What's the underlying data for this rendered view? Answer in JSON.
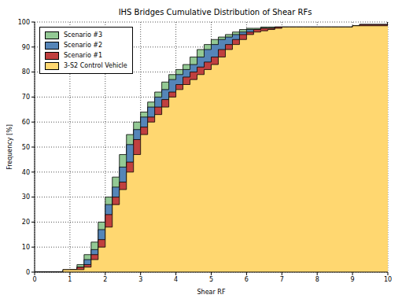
{
  "chart_data": {
    "type": "area",
    "title": "IHS Bridges Cumulative Distribution of Shear RFs",
    "x_label": "Shear RF",
    "y_label": "Frequency [%]",
    "x": [
      0,
      0.2,
      0.4,
      0.6,
      0.8,
      1,
      1.2,
      1.4,
      1.6,
      1.8,
      2,
      2.2,
      2.4,
      2.6,
      2.8,
      3,
      3.2,
      3.4,
      3.6,
      3.8,
      4,
      4.2,
      4.4,
      4.6,
      4.8,
      5,
      5.2,
      5.4,
      5.6,
      5.8,
      6,
      6.2,
      6.4,
      6.6,
      6.8,
      7,
      7.2,
      7.4,
      7.6,
      7.8,
      8,
      8.2,
      8.4,
      8.6,
      8.8,
      9,
      9.2,
      9.4,
      9.6,
      9.8,
      10
    ],
    "series": [
      {
        "name": "Scenario #3",
        "color": "#93c994",
        "values": [
          0,
          0,
          0,
          0,
          0,
          1,
          3,
          7,
          12,
          20,
          30,
          38,
          47,
          55,
          60,
          64,
          68,
          72,
          76,
          79,
          81,
          83,
          86,
          89,
          91,
          93,
          94,
          95,
          96,
          97,
          97.5,
          97.5,
          98,
          98,
          98,
          98,
          98,
          98,
          98,
          98,
          98,
          98,
          98,
          98,
          98,
          98.5,
          99,
          99,
          99,
          99,
          100
        ]
      },
      {
        "name": "Scenario #2",
        "color": "#5585b8",
        "values": [
          0,
          0,
          0,
          0,
          0,
          1,
          2,
          5,
          9,
          17,
          27,
          34,
          42,
          51,
          57,
          62,
          66,
          70,
          73,
          77,
          79,
          81,
          83,
          86,
          89,
          91,
          93,
          94,
          95,
          96,
          97,
          97,
          97.5,
          97.5,
          98,
          98,
          98,
          98,
          98,
          98,
          98,
          98,
          98,
          98,
          98,
          98.5,
          99,
          99,
          99,
          99,
          100
        ]
      },
      {
        "name": "Scenario #1",
        "color": "#c0403f",
        "values": [
          0,
          0,
          0,
          0,
          1,
          1,
          2,
          3,
          7,
          13,
          23,
          30,
          36,
          44,
          53,
          58,
          62,
          66,
          69,
          72,
          75,
          78,
          80,
          82,
          84,
          86,
          89,
          91,
          93,
          95,
          96,
          97,
          97.5,
          97.5,
          98,
          98,
          98,
          98,
          98,
          98,
          98,
          98,
          98,
          98,
          98,
          98.5,
          99,
          99,
          99,
          99,
          100
        ]
      },
      {
        "name": "3-S2 Control Vehicle",
        "color": "#ffd770",
        "values": [
          0,
          0,
          0,
          0,
          1,
          1,
          1,
          2,
          5,
          10,
          18,
          27,
          33,
          40,
          47,
          55,
          60,
          63,
          66,
          70,
          73,
          75,
          77,
          79,
          81,
          83,
          86,
          89,
          91,
          93,
          95,
          96,
          96.5,
          97,
          97.5,
          98,
          98,
          98,
          98,
          98,
          98,
          98,
          98,
          98,
          98,
          98.5,
          98.5,
          98.5,
          98.5,
          98.5,
          100
        ]
      }
    ],
    "xlim": [
      0,
      10
    ],
    "xticks": [
      0,
      1,
      2,
      3,
      4,
      5,
      6,
      7,
      8,
      9,
      10
    ],
    "ylim": [
      0,
      100
    ],
    "yticks": [
      0,
      10,
      20,
      30,
      40,
      50,
      60,
      70,
      80,
      90,
      100
    ],
    "grid": true,
    "legend": "upper left"
  }
}
